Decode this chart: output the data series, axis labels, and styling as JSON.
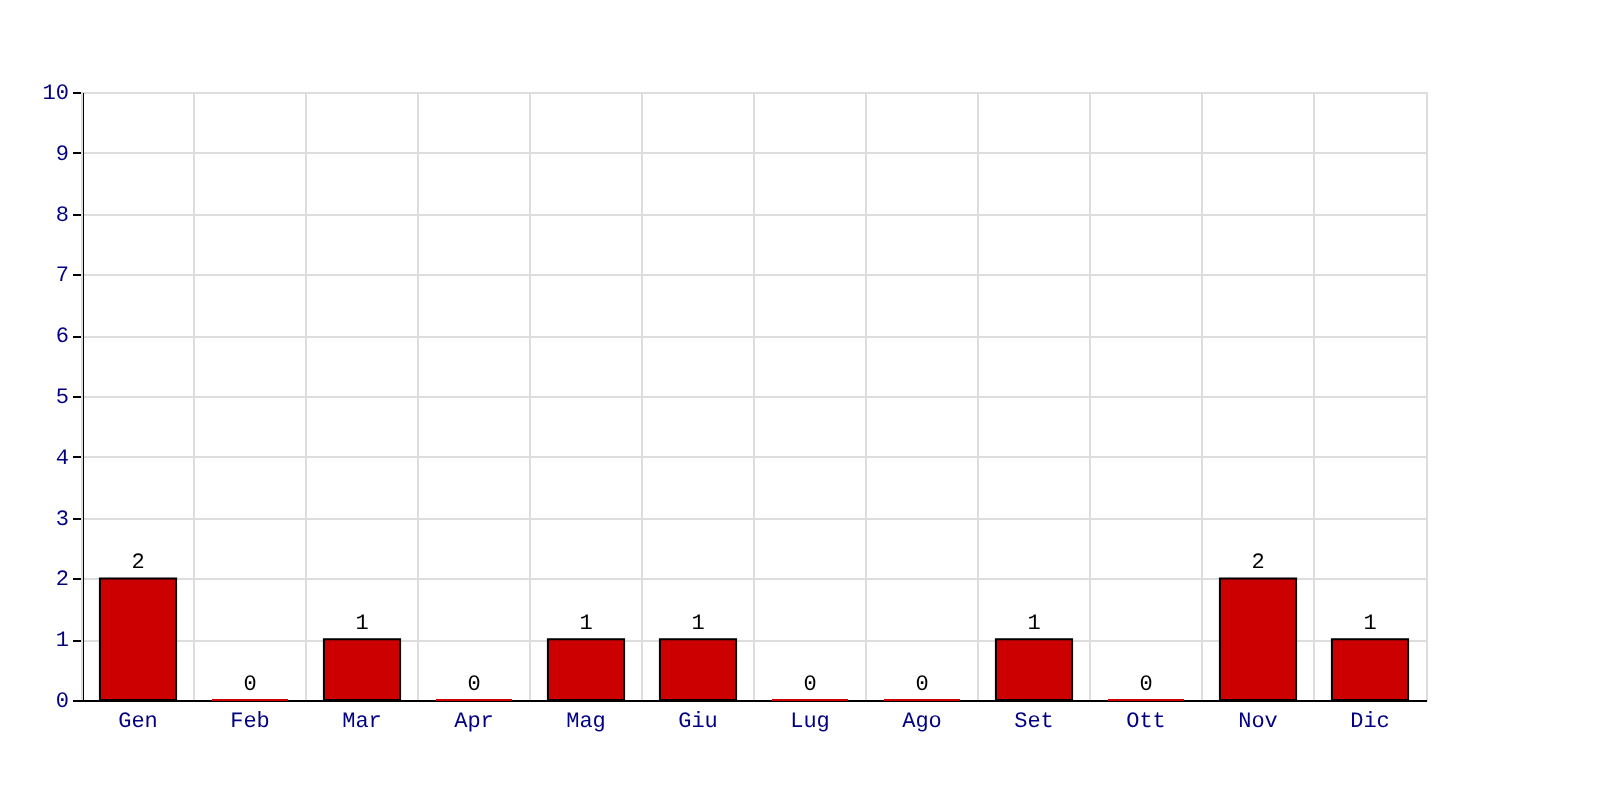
{
  "chart_data": {
    "type": "bar",
    "categories": [
      "Gen",
      "Feb",
      "Mar",
      "Apr",
      "Mag",
      "Giu",
      "Lug",
      "Ago",
      "Set",
      "Ott",
      "Nov",
      "Dic"
    ],
    "values": [
      2,
      0,
      1,
      0,
      1,
      1,
      0,
      0,
      1,
      0,
      2,
      1
    ],
    "color": "#cc0000",
    "ylim": [
      0,
      10
    ],
    "yticks": [
      0,
      1,
      2,
      3,
      4,
      5,
      6,
      7,
      8,
      9,
      10
    ],
    "grid": true,
    "data_labels": true
  }
}
